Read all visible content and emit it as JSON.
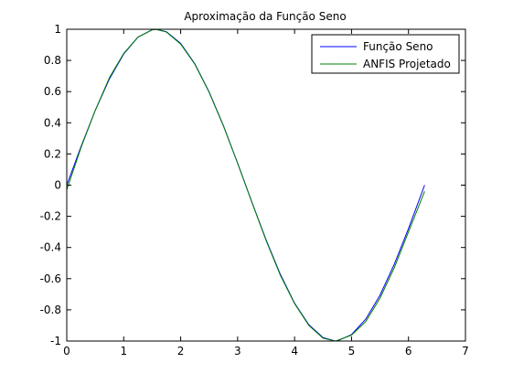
{
  "chart_data": {
    "type": "line",
    "title": "Aproximação da Função Seno",
    "xlabel": "",
    "ylabel": "",
    "xlim": [
      0,
      7
    ],
    "ylim": [
      -1,
      1
    ],
    "xticks": [
      0,
      1,
      2,
      3,
      4,
      5,
      6,
      7
    ],
    "yticks": [
      1,
      0.8,
      0.6,
      0.4,
      0.2,
      0,
      -0.2,
      -0.4,
      -0.6,
      -0.8,
      -1
    ],
    "ytick_labels": [
      "1",
      "0.8",
      "0.6",
      "0.4",
      "0.2",
      "0",
      "-0.2",
      "-0.4",
      "-0.6",
      "-0.8",
      "-1"
    ],
    "grid": false,
    "legend_position": "top-right",
    "series": [
      {
        "name": "Função Seno",
        "color": "#0000ff",
        "x": [
          0,
          0.25,
          0.5,
          0.75,
          1,
          1.25,
          1.5,
          1.571,
          1.75,
          2,
          2.25,
          2.5,
          2.75,
          3,
          3.25,
          3.5,
          3.75,
          4,
          4.25,
          4.5,
          4.712,
          4.75,
          5,
          5.25,
          5.5,
          5.75,
          6,
          6.283
        ],
        "y": [
          0,
          0.247,
          0.479,
          0.682,
          0.841,
          0.949,
          0.997,
          1,
          0.984,
          0.909,
          0.778,
          0.598,
          0.382,
          0.141,
          -0.108,
          -0.351,
          -0.572,
          -0.757,
          -0.895,
          -0.978,
          -1,
          -0.999,
          -0.959,
          -0.859,
          -0.706,
          -0.508,
          -0.279,
          0
        ]
      },
      {
        "name": "ANFIS Projetado",
        "color": "#008000",
        "x": [
          0,
          0.25,
          0.5,
          0.75,
          1,
          1.25,
          1.5,
          1.571,
          1.75,
          2,
          2.25,
          2.5,
          2.75,
          3,
          3.25,
          3.5,
          3.75,
          4,
          4.25,
          4.5,
          4.712,
          4.75,
          5,
          5.25,
          5.5,
          5.75,
          6,
          6.283
        ],
        "y": [
          -0.03,
          0.24,
          0.48,
          0.69,
          0.845,
          0.95,
          0.996,
          0.999,
          0.982,
          0.905,
          0.775,
          0.595,
          0.38,
          0.14,
          -0.11,
          -0.355,
          -0.578,
          -0.76,
          -0.9,
          -0.982,
          -1.0,
          -0.996,
          -0.962,
          -0.875,
          -0.725,
          -0.53,
          -0.3,
          -0.04
        ]
      }
    ]
  }
}
